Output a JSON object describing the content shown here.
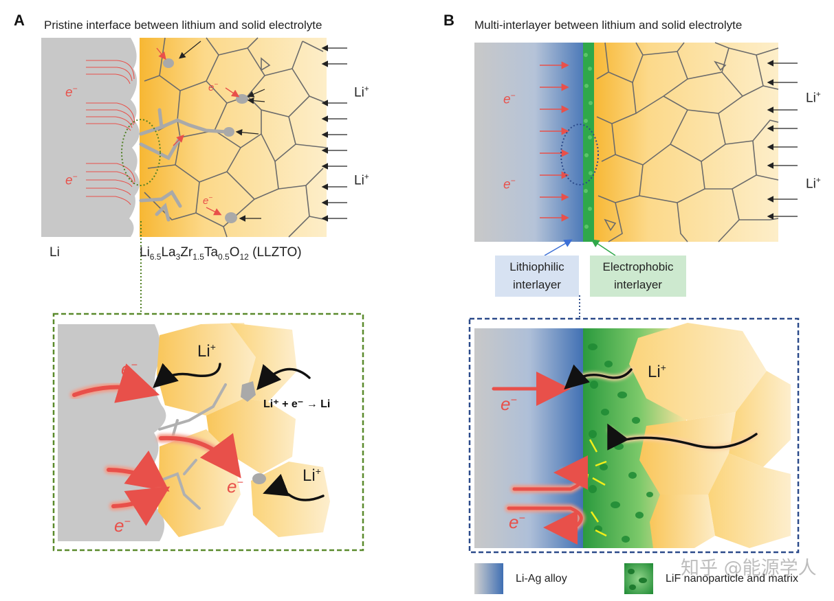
{
  "panel_a": {
    "letter": "A",
    "title": "Pristine interface between lithium and solid electrolyte",
    "li_label": "Li",
    "li_plus": "Li+",
    "e_minus": "e−",
    "electrolyte_formula": {
      "parts": [
        "Li",
        "6.5",
        "La",
        "3",
        "Zr",
        "1.5",
        "Ta",
        "0.5",
        "O",
        "12",
        " (LLZTO)"
      ]
    },
    "zoom": {
      "li_plus": "Li+",
      "e_minus": "e−",
      "reaction": "Li⁺ + e⁻ → Li"
    }
  },
  "panel_b": {
    "letter": "B",
    "title": "Multi-interlayer between lithium and solid electrolyte",
    "li_plus": "Li+",
    "e_minus": "e−",
    "lithiophilic_label": [
      "Lithiophilic",
      "interlayer"
    ],
    "electrophobic_label": [
      "Electrophobic",
      "interlayer"
    ],
    "zoom": {
      "li_plus": "Li+",
      "e_minus": "e−"
    }
  },
  "legend": [
    {
      "label": "Li-Ag alloy",
      "icon": "gradient-gray-blue-swatch"
    },
    {
      "label": "LiF nanoparticle and matrix",
      "icon": "green-particles-swatch"
    }
  ],
  "watermark": "知乎 @能源学人",
  "colors": {
    "li_metal": "#c8c8c8",
    "electrolyte_dark": "#f7b733",
    "electrolyte_light": "#fde9b8",
    "electron_arrow": "#e8504a",
    "ion_arrow": "#222222",
    "zoom_box_a": "#5a8a2c",
    "zoom_box_b": "#2b4a8a",
    "lithiophilic_bg": "#d7e2f2",
    "electrophobic_bg": "#cde9cf",
    "alloy_blue": "#4a78b8",
    "lif_green": "#2fa84a"
  }
}
